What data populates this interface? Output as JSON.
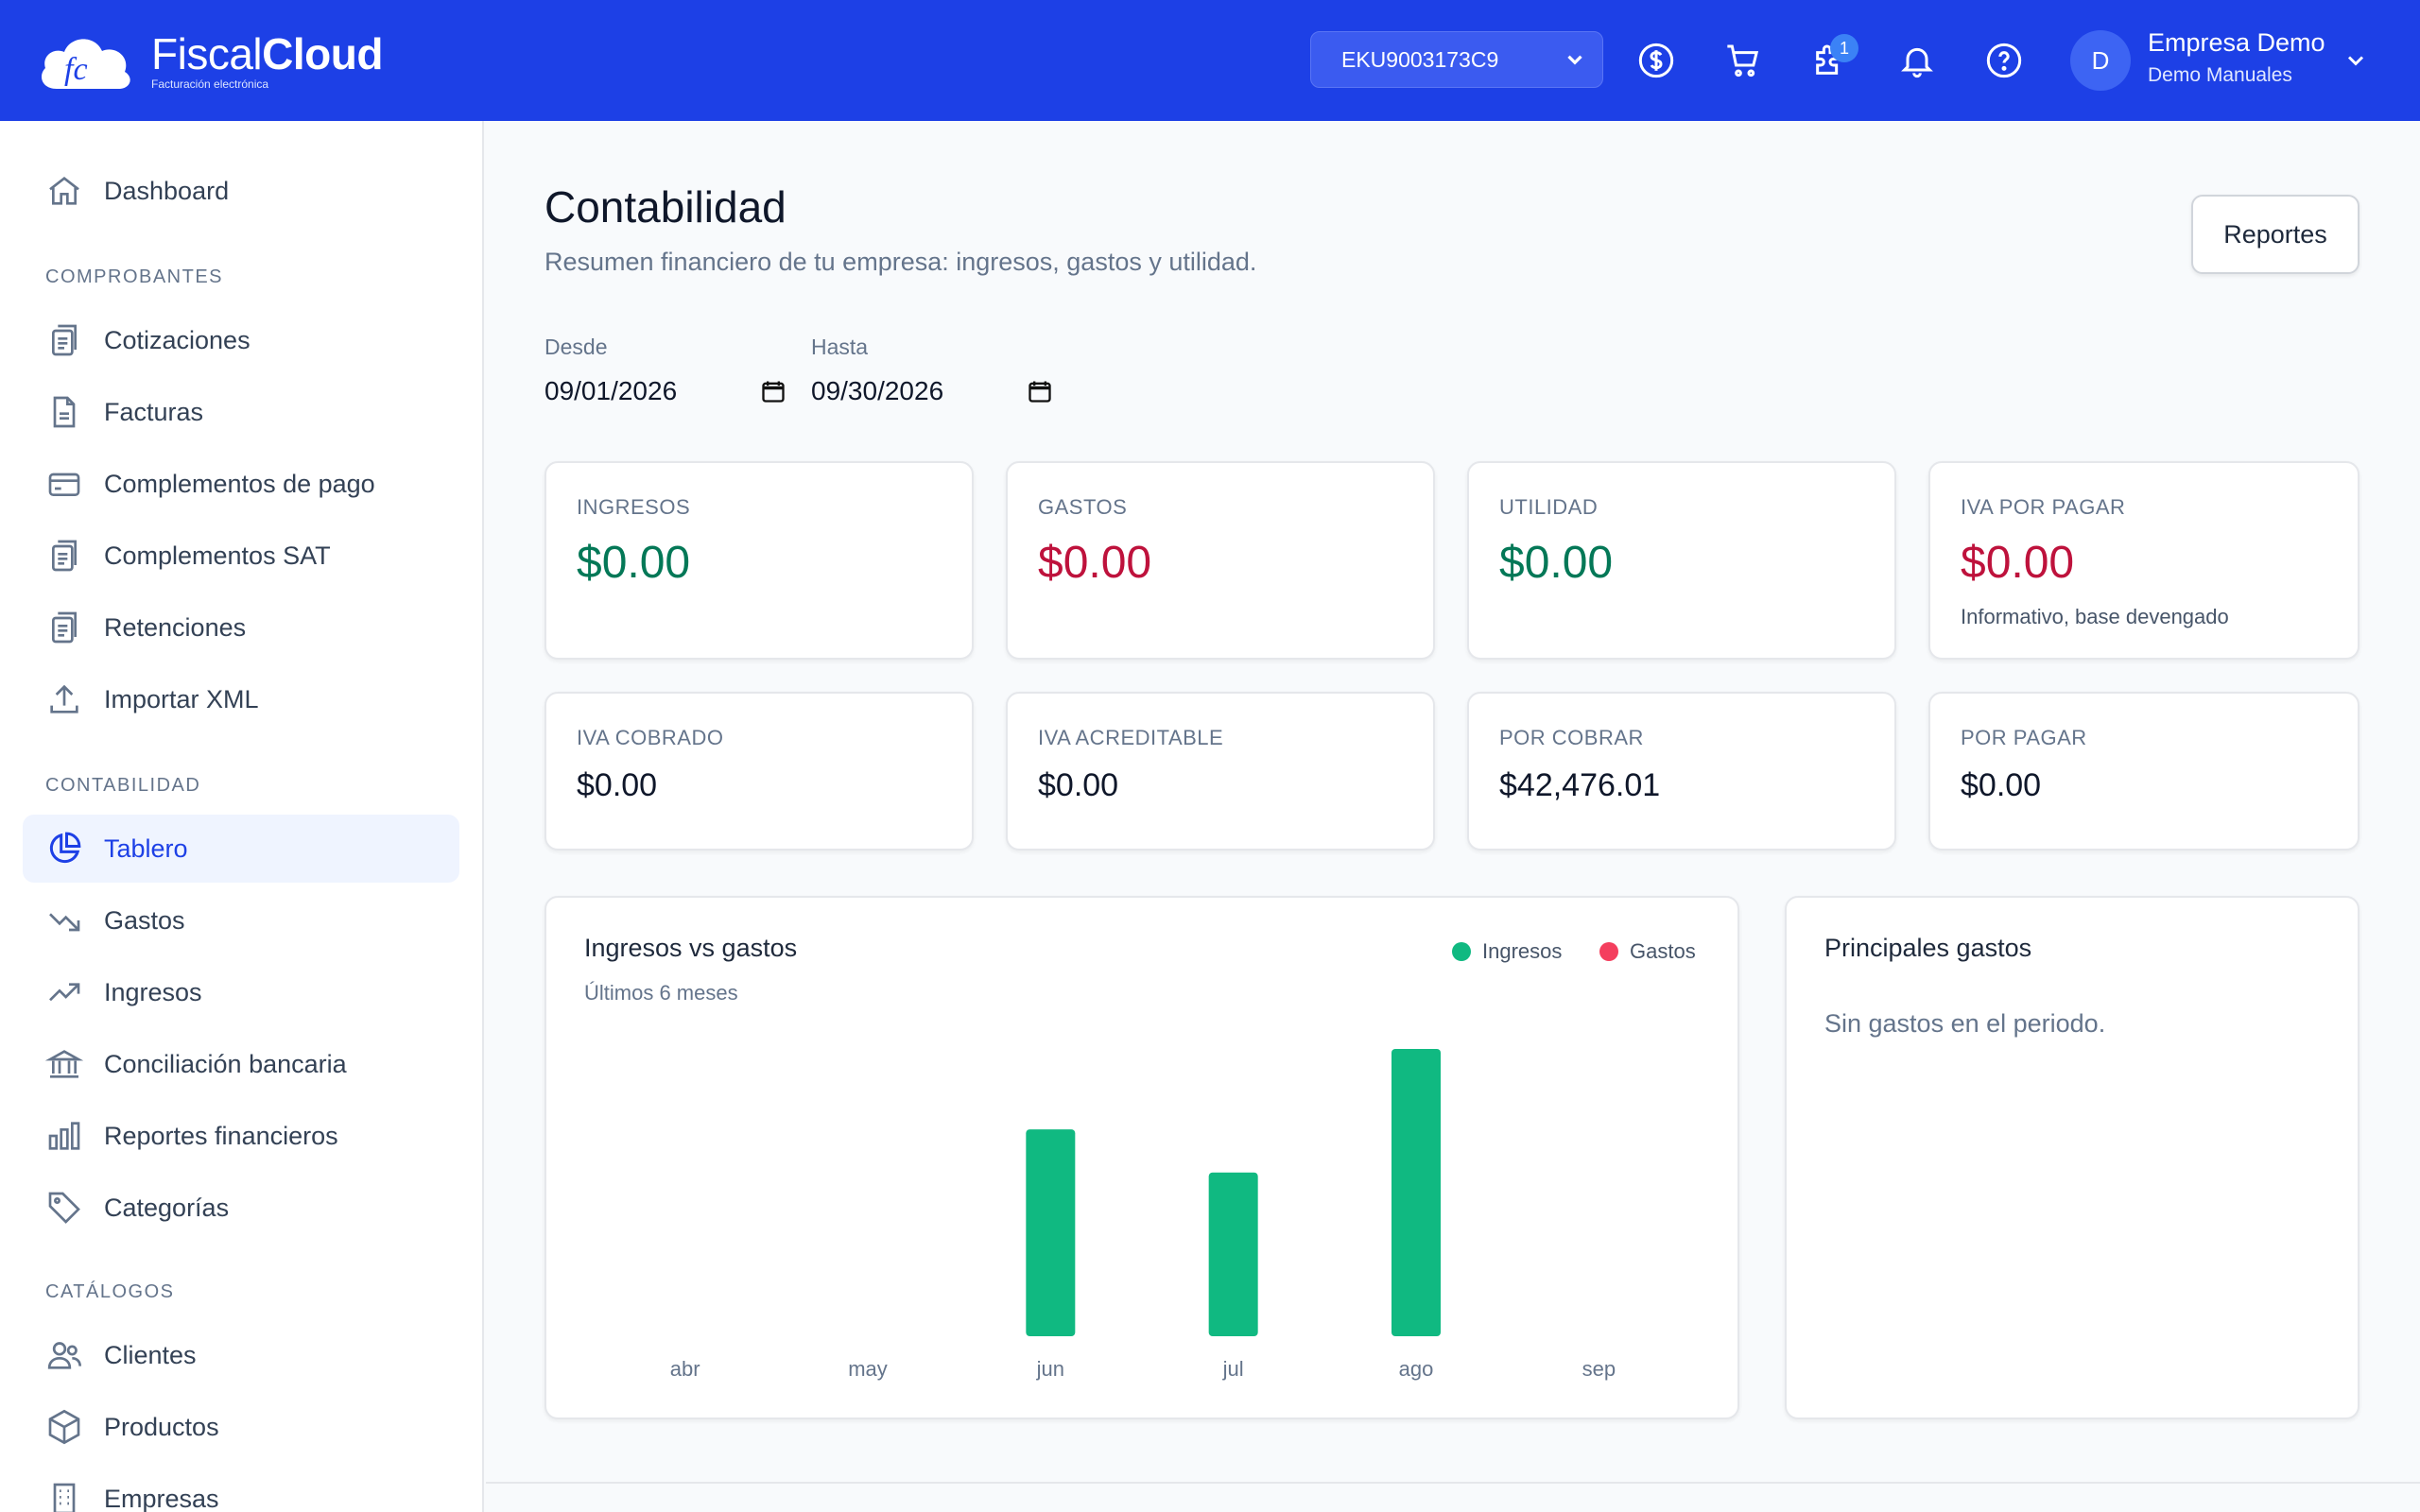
{
  "header": {
    "logo_light": "Fiscal",
    "logo_bold": "Cloud",
    "logo_tagline": "Facturación electrónica",
    "rfc_selector": "EKU9003173C9",
    "notification_badge": "1",
    "user_name": "Empresa Demo",
    "user_subtitle": "Demo Manuales",
    "avatar_initial": "D",
    "icons": [
      "dollar-circle-icon",
      "cart-icon",
      "puzzle-icon",
      "bell-icon",
      "help-icon"
    ]
  },
  "sidebar": {
    "dashboard": "Dashboard",
    "sections": {
      "comprobantes": "COMPROBANTES",
      "contabilidad": "CONTABILIDAD",
      "catalogos": "CATÁLOGOS"
    },
    "comprobantes": [
      "Cotizaciones",
      "Facturas",
      "Complementos de pago",
      "Complementos SAT",
      "Retenciones",
      "Importar XML"
    ],
    "contabilidad": [
      "Tablero",
      "Gastos",
      "Ingresos",
      "Conciliación bancaria",
      "Reportes financieros",
      "Categorías"
    ],
    "catalogos": [
      "Clientes",
      "Productos",
      "Empresas"
    ]
  },
  "page": {
    "title": "Contabilidad",
    "subtitle": "Resumen financiero de tu empresa: ingresos, gastos y utilidad.",
    "reports_button": "Reportes",
    "filters": {
      "desde_label": "Desde",
      "desde_value": "09/01/2026",
      "hasta_label": "Hasta",
      "hasta_value": "09/30/2026"
    }
  },
  "kpis": [
    {
      "label": "INGRESOS",
      "value": "$0.00",
      "color": "#047857"
    },
    {
      "label": "GASTOS",
      "value": "$0.00",
      "color": "#be123c"
    },
    {
      "label": "UTILIDAD",
      "value": "$0.00",
      "color": "#047857"
    },
    {
      "label": "IVA POR PAGAR",
      "value": "$0.00",
      "color": "#be123c",
      "note": "Informativo, base devengado"
    }
  ],
  "stats": [
    {
      "label": "IVA COBRADO",
      "value": "$0.00"
    },
    {
      "label": "IVA ACREDITABLE",
      "value": "$0.00"
    },
    {
      "label": "POR COBRAR",
      "value": "$42,476.01"
    },
    {
      "label": "POR PAGAR",
      "value": "$0.00"
    }
  ],
  "chart_panel": {
    "title": "Ingresos vs gastos",
    "subtitle": "Últimos 6 meses"
  },
  "expenses_panel": {
    "title": "Principales gastos",
    "empty": "Sin gastos en el periodo."
  },
  "chart_data": {
    "type": "bar",
    "categories": [
      "abr",
      "may",
      "jun",
      "jul",
      "ago",
      "sep"
    ],
    "series": [
      {
        "name": "Ingresos",
        "color": "#10b981",
        "values": [
          0,
          0,
          72,
          57,
          100,
          0
        ]
      },
      {
        "name": "Gastos",
        "color": "#f43f5e",
        "values": [
          0,
          0,
          0,
          0,
          0,
          0
        ]
      }
    ],
    "legend": "top-right",
    "grid": false
  }
}
